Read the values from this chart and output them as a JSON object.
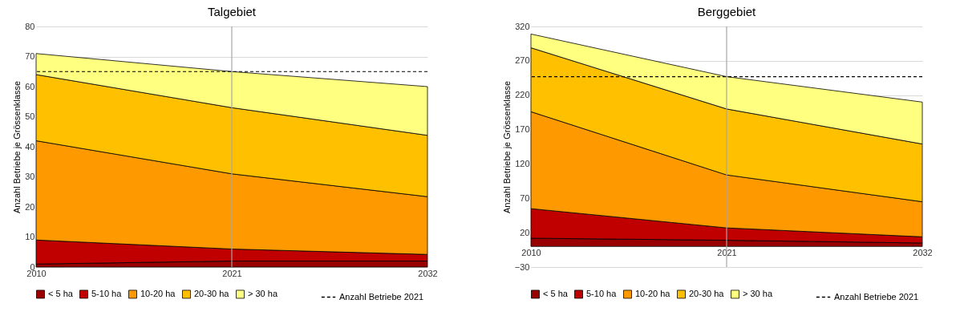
{
  "chart_data": [
    {
      "type": "area",
      "stacked": true,
      "title": "Talgebiet",
      "ylabel": "Anzahl Betriebe je Grössenklasse",
      "x": [
        2010,
        2021,
        2032
      ],
      "xlim": [
        2010,
        2032
      ],
      "xticks": [
        2010,
        2021,
        2032
      ],
      "ylim": [
        0,
        80
      ],
      "yticks": [
        0,
        10,
        20,
        30,
        40,
        50,
        60,
        70,
        80
      ],
      "grid": "y",
      "legend": "bottom",
      "series": [
        {
          "name": "< 5 ha",
          "color": "#990000",
          "values": [
            1,
            2,
            2
          ]
        },
        {
          "name": "5-10 ha",
          "color": "#c00000",
          "values": [
            8,
            4,
            2.2
          ]
        },
        {
          "name": "10-20 ha",
          "color": "#ff9900",
          "values": [
            33,
            25,
            19.2
          ]
        },
        {
          "name": "20-30 ha",
          "color": "#ffc000",
          "values": [
            22,
            22,
            20.4
          ]
        },
        {
          "name": "> 30 ha",
          "color": "#ffff80",
          "values": [
            7,
            12,
            16.2
          ]
        }
      ],
      "ref_lines": [
        {
          "axis": "y",
          "value": 65,
          "label": "Anzahl Betriebe 2021",
          "line_style": "dashed",
          "color": "#000000"
        },
        {
          "axis": "x",
          "value": 2021,
          "color": "#a6a6a6"
        }
      ]
    },
    {
      "type": "area",
      "stacked": true,
      "title": "Berggebiet",
      "ylabel": "Anzahl Betriebe je Grössenklasse",
      "x": [
        2010,
        2021,
        2032
      ],
      "xlim": [
        2010,
        2032
      ],
      "xticks": [
        2010,
        2021,
        2032
      ],
      "ylim": [
        -30,
        320
      ],
      "yticks": [
        -30,
        20,
        70,
        120,
        170,
        220,
        270,
        320
      ],
      "grid": "y",
      "legend": "bottom",
      "series": [
        {
          "name": "< 5 ha",
          "color": "#990000",
          "values": [
            12,
            9,
            5
          ]
        },
        {
          "name": "5-10 ha",
          "color": "#c00000",
          "values": [
            43,
            18,
            9
          ]
        },
        {
          "name": "10-20 ha",
          "color": "#ff9900",
          "values": [
            141,
            77,
            51
          ]
        },
        {
          "name": "20-30 ha",
          "color": "#ffc000",
          "values": [
            93,
            96,
            84
          ]
        },
        {
          "name": "> 30 ha",
          "color": "#ffff80",
          "values": [
            20,
            47,
            61
          ]
        }
      ],
      "ref_lines": [
        {
          "axis": "y",
          "value": 247,
          "label": "Anzahl Betriebe 2021",
          "line_style": "dashed",
          "color": "#000000"
        },
        {
          "axis": "x",
          "value": 2021,
          "color": "#a6a6a6"
        }
      ]
    }
  ]
}
